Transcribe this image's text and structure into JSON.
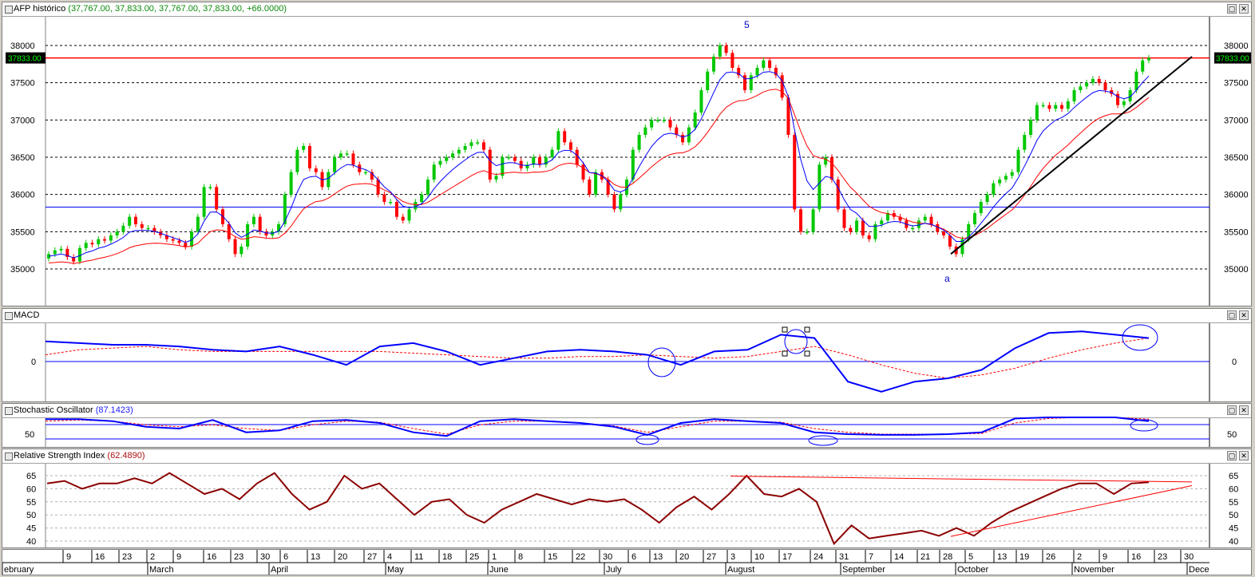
{
  "panes": {
    "price": {
      "title": "AFP histórico",
      "subtitle": "(37,767.00, 37,833.00, 37,767.00, 37,833.00, +66.0000)",
      "last_price_label": "37833.00",
      "y_ticks": [
        "38000",
        "37500",
        "37000",
        "36500",
        "36000",
        "35500",
        "35000"
      ],
      "annotations": [
        "5",
        "a"
      ]
    },
    "macd": {
      "title": "MACD",
      "y_ticks": [
        "0"
      ]
    },
    "stoch": {
      "title": "Stochastic Oscillator",
      "value": "(87.1423)",
      "y_ticks": [
        "50"
      ]
    },
    "rsi": {
      "title": "Relative Strength Index",
      "value": "(62.4890)",
      "y_ticks": [
        "65",
        "60",
        "55",
        "50",
        "45",
        "40"
      ]
    }
  },
  "x_axis": {
    "day_ticks": [
      "9",
      "16",
      "23",
      "2",
      "9",
      "16",
      "23",
      "30",
      "6",
      "13",
      "20",
      "27",
      "4",
      "11",
      "18",
      "25",
      "1",
      "8",
      "15",
      "22",
      "30",
      "6",
      "13",
      "20",
      "27",
      "3",
      "10",
      "17",
      "24",
      "31",
      "7",
      "14",
      "21",
      "28",
      "5",
      "13",
      "19",
      "26",
      "2",
      "9",
      "16",
      "23",
      "30"
    ],
    "month_ticks": [
      "ebruary",
      "March",
      "April",
      "May",
      "June",
      "July",
      "August",
      "September",
      "October",
      "November",
      "Dece"
    ]
  },
  "colors": {
    "up_candle": "#00c800",
    "down_candle": "#ff0000",
    "ma_fast": "#0000ff",
    "ma_slow": "#ff0000",
    "macd_line": "#0000ff",
    "signal_line": "#ff0000",
    "rsi_line": "#8b0000",
    "trendline": "#000000"
  },
  "chart_data": [
    {
      "type": "candlestick",
      "ylim": [
        34500,
        38300
      ],
      "horizontal_lines": [
        37833,
        35830
      ],
      "trendline": {
        "from": [
          "28 Sep",
          35200
        ],
        "to": [
          "30 Nov",
          37850
        ]
      },
      "close_series": [
        35200,
        35250,
        35270,
        35160,
        35100,
        35280,
        35350,
        35330,
        35400,
        35380,
        35450,
        35500,
        35580,
        35700,
        35600,
        35550,
        35550,
        35500,
        35450,
        35400,
        35380,
        35350,
        35300,
        35500,
        35700,
        36100,
        36100,
        35800,
        35600,
        35400,
        35200,
        35300,
        35600,
        35700,
        35500,
        35450,
        35500,
        35600,
        36000,
        36300,
        36600,
        36650,
        36350,
        36300,
        36100,
        36300,
        36500,
        36550,
        36550,
        36400,
        36300,
        36300,
        36200,
        36000,
        35900,
        35900,
        35700,
        35650,
        35800,
        35900,
        36000,
        36200,
        36400,
        36450,
        36500,
        36550,
        36600,
        36650,
        36700,
        36700,
        36600,
        36200,
        36250,
        36500,
        36500,
        36450,
        36350,
        36400,
        36500,
        36400,
        36500,
        36600,
        36850,
        36700,
        36600,
        36400,
        36200,
        36000,
        36300,
        36200,
        36000,
        35800,
        36000,
        36200,
        36600,
        36800,
        36900,
        37000,
        37000,
        37000,
        36900,
        36800,
        36700,
        36900,
        37100,
        37400,
        37650,
        37850,
        38000,
        37900,
        37700,
        37600,
        37400,
        37600,
        37700,
        37800,
        37700,
        37600,
        37300,
        36800,
        35800,
        35500,
        35500,
        35800,
        36400,
        36500,
        36200,
        35800,
        35550,
        35500,
        35650,
        35450,
        35400,
        35600,
        35650,
        35750,
        35700,
        35650,
        35550,
        35550,
        35650,
        35700,
        35600,
        35500,
        35450,
        35300,
        35200,
        35400,
        35600,
        35750,
        35900,
        36000,
        36150,
        36200,
        36250,
        36300,
        36600,
        36800,
        37000,
        37200,
        37200,
        37150,
        37200,
        37150,
        37250,
        37400,
        37450,
        37500,
        37550,
        37500,
        37400,
        37350,
        37200,
        37250,
        37400,
        37650,
        37800,
        37833
      ],
      "x_months": [
        "February",
        "March",
        "April",
        "May",
        "June",
        "July",
        "August",
        "September",
        "October",
        "November"
      ],
      "labels": [
        "5",
        "a"
      ]
    },
    {
      "type": "line",
      "series": [
        {
          "values": [
            0.6,
            0.55,
            0.5,
            0.5,
            0.45,
            0.35,
            0.3,
            0.45,
            0.2,
            -0.1,
            0.45,
            0.55,
            0.3,
            -0.1,
            0.1,
            0.3,
            0.35,
            0.3,
            0.2,
            -0.1,
            0.3,
            0.35,
            0.8,
            0.7,
            -0.6,
            -0.9,
            -0.6,
            -0.5,
            -0.25,
            0.4,
            0.85,
            0.9,
            0.8,
            0.7
          ]
        },
        {
          "values": [
            0.2,
            0.35,
            0.4,
            0.45,
            0.35,
            0.3,
            0.3,
            0.3,
            0.3,
            0.3,
            0.3,
            0.25,
            0.2,
            0.15,
            0.1,
            0.1,
            0.15,
            0.15,
            0.2,
            0.15,
            0.1,
            0.15,
            0.3,
            0.45,
            0.2,
            -0.1,
            -0.35,
            -0.5,
            -0.4,
            -0.2,
            0.1,
            0.35,
            0.55,
            0.7
          ]
        }
      ],
      "zero_line": 0
    },
    {
      "type": "line",
      "series": [
        {
          "values": [
            90,
            90,
            85,
            70,
            65,
            88,
            55,
            60,
            85,
            88,
            80,
            55,
            45,
            85,
            90,
            85,
            80,
            70,
            48,
            80,
            90,
            85,
            80,
            55,
            50,
            48,
            48,
            50,
            55,
            92,
            95,
            95,
            95,
            85
          ]
        },
        {
          "values": [
            85,
            88,
            85,
            75,
            70,
            75,
            65,
            60,
            75,
            85,
            82,
            65,
            50,
            75,
            85,
            85,
            80,
            72,
            55,
            70,
            85,
            85,
            82,
            65,
            55,
            50,
            50,
            50,
            52,
            80,
            92,
            95,
            95,
            90
          ]
        }
      ],
      "levels": [
        80,
        20
      ]
    },
    {
      "type": "line",
      "ylim": [
        38,
        68
      ],
      "series": [
        {
          "values": [
            62,
            63,
            60,
            62,
            62,
            64,
            62,
            66,
            62,
            58,
            60,
            56,
            62,
            66,
            58,
            52,
            55,
            65,
            60,
            62,
            56,
            50,
            55,
            56,
            50,
            47,
            52,
            55,
            58,
            56,
            54,
            56,
            55,
            56,
            52,
            47,
            53,
            57,
            52,
            58,
            65,
            58,
            57,
            60,
            55,
            39,
            46,
            41,
            42,
            43,
            44,
            42,
            45,
            42,
            47,
            51,
            54,
            57,
            60,
            62,
            62,
            58,
            62,
            62.5
          ]
        }
      ],
      "trendlines": [
        {
          "from": [
            "3 Aug",
            64.8
          ],
          "to": [
            "30 Nov",
            62.6
          ]
        },
        {
          "from": [
            "28 Sep",
            41.8
          ],
          "to": [
            "30 Nov",
            61.2
          ]
        }
      ]
    }
  ]
}
